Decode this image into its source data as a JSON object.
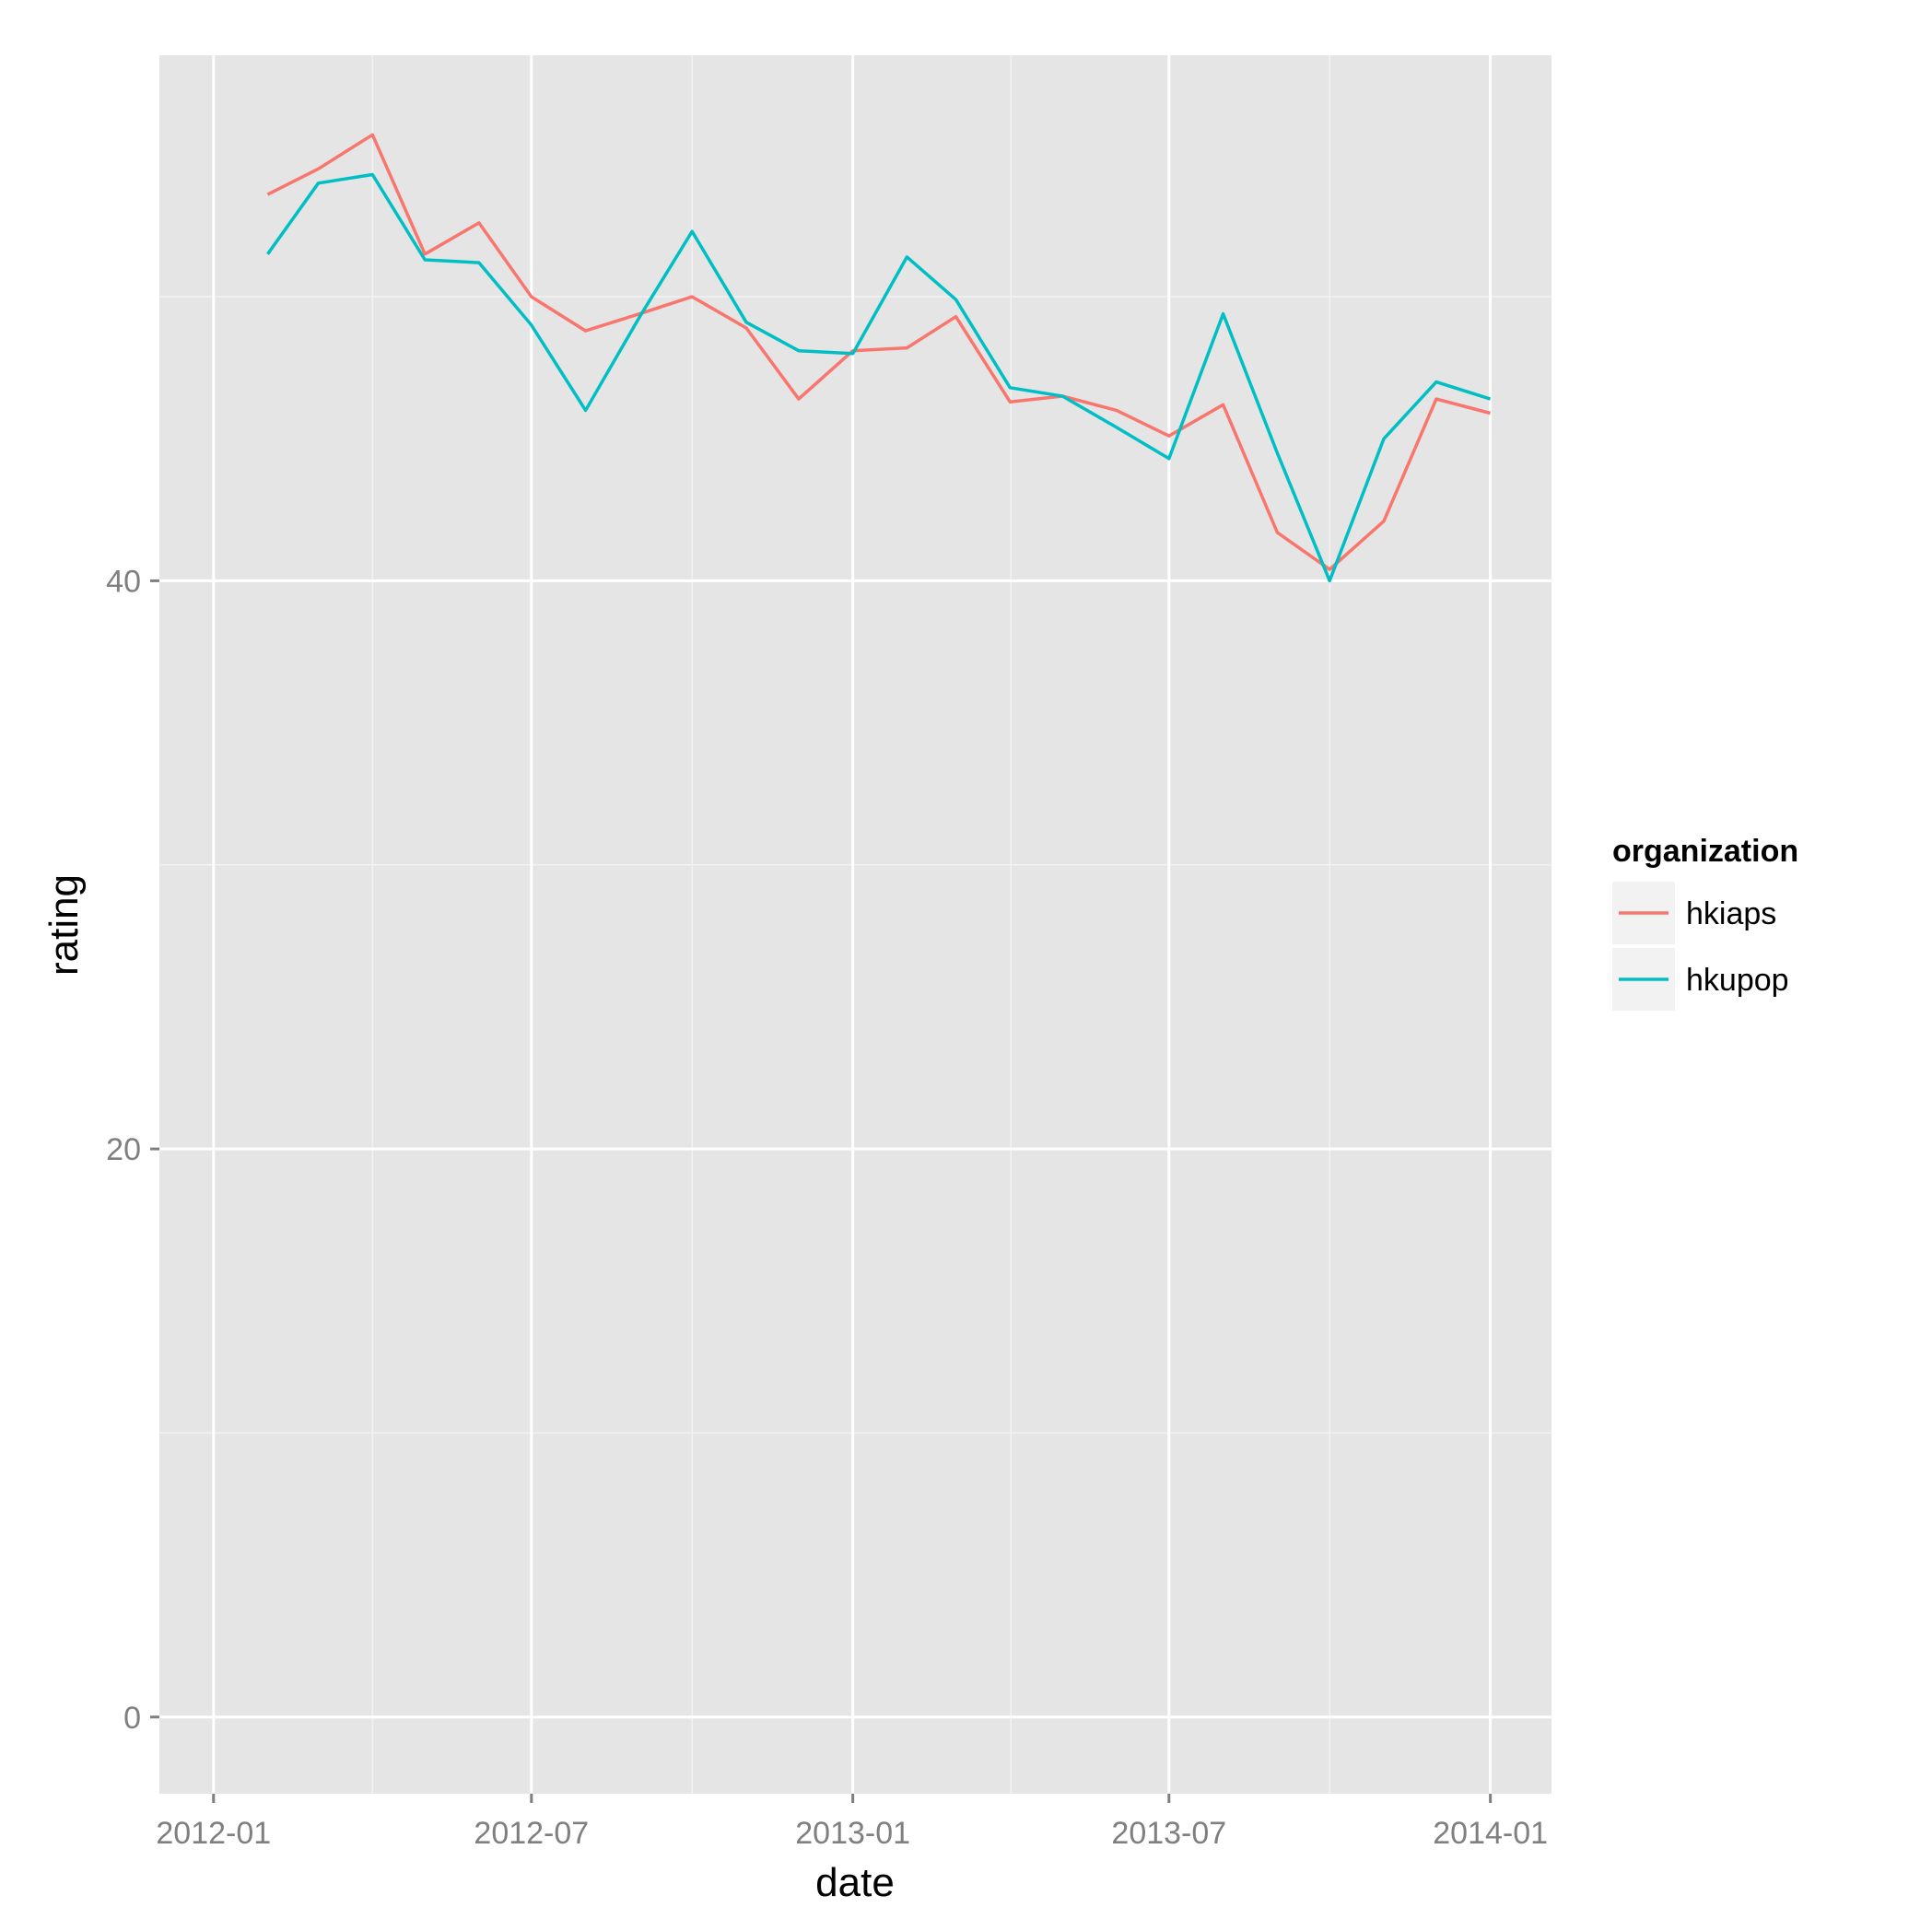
{
  "chart_data": {
    "type": "line",
    "xlabel": "date",
    "ylabel": "rating",
    "x_ticks": [
      "2012-01",
      "2012-07",
      "2013-01",
      "2013-07",
      "2014-01"
    ],
    "y_ticks": [
      0,
      20,
      40
    ],
    "xlim": [
      "2011-12-01",
      "2014-02-05"
    ],
    "ylim": [
      -2.7,
      58.5
    ],
    "grid": true,
    "legend": {
      "title": "organization",
      "position": "right"
    },
    "x": [
      "2012-02-01",
      "2012-03-01",
      "2012-04-01",
      "2012-05-01",
      "2012-06-01",
      "2012-07-01",
      "2012-08-01",
      "2012-09-01",
      "2012-10-01",
      "2012-11-01",
      "2012-12-01",
      "2013-01-01",
      "2013-02-01",
      "2013-03-01",
      "2013-04-01",
      "2013-05-01",
      "2013-06-01",
      "2013-07-01",
      "2013-08-01",
      "2013-09-01",
      "2013-10-01",
      "2013-11-01",
      "2013-12-01",
      "2014-01-01"
    ],
    "series": [
      {
        "name": "hkiaps",
        "color": "#F8766D",
        "values": [
          53.6,
          54.5,
          55.7,
          51.5,
          52.6,
          50.0,
          48.8,
          49.4,
          50.0,
          48.9,
          46.4,
          48.1,
          48.2,
          49.3,
          46.3,
          46.5,
          46.0,
          45.1,
          46.2,
          41.7,
          40.4,
          42.1,
          46.4,
          45.9
        ]
      },
      {
        "name": "hkupop",
        "color": "#00BFC4",
        "values": [
          51.5,
          54.0,
          54.3,
          51.3,
          51.2,
          49.0,
          46.0,
          49.3,
          52.3,
          49.1,
          48.1,
          48.0,
          51.4,
          49.9,
          46.8,
          46.5,
          45.4,
          44.3,
          49.4,
          44.5,
          40.0,
          45.0,
          47.0,
          46.4
        ]
      }
    ]
  }
}
